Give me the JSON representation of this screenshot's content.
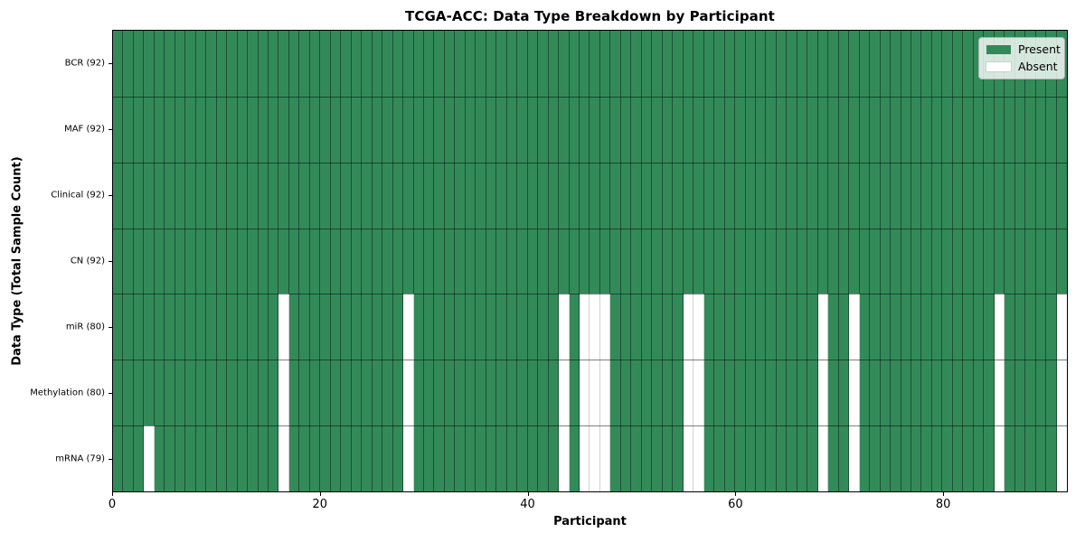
{
  "chart_data": {
    "type": "heatmap",
    "title": "TCGA-ACC: Data Type Breakdown by Participant",
    "xlabel": "Participant",
    "ylabel": "Data Type (Total Sample Count)",
    "n_participants": 92,
    "x_ticks": [
      0,
      20,
      40,
      60,
      80
    ],
    "rows": [
      {
        "label": "BCR (92)",
        "present_count": 92,
        "absent_participants": []
      },
      {
        "label": "MAF (92)",
        "present_count": 92,
        "absent_participants": []
      },
      {
        "label": "Clinical (92)",
        "present_count": 92,
        "absent_participants": []
      },
      {
        "label": "CN (92)",
        "present_count": 92,
        "absent_participants": []
      },
      {
        "label": "miR (80)",
        "present_count": 80,
        "absent_participants": [
          16,
          28,
          43,
          45,
          46,
          47,
          55,
          56,
          68,
          71,
          85,
          91
        ]
      },
      {
        "label": "Methylation (80)",
        "present_count": 80,
        "absent_participants": [
          16,
          28,
          43,
          45,
          46,
          47,
          55,
          56,
          68,
          71,
          85,
          91
        ]
      },
      {
        "label": "mRNA (79)",
        "present_count": 79,
        "absent_participants": [
          3,
          16,
          28,
          43,
          45,
          46,
          47,
          55,
          56,
          68,
          71,
          85,
          91
        ]
      }
    ],
    "legend": [
      {
        "label": "Present",
        "color": "#338a59"
      },
      {
        "label": "Absent",
        "color": "#ffffff"
      }
    ],
    "legend_position": "upper right",
    "grid": true
  }
}
